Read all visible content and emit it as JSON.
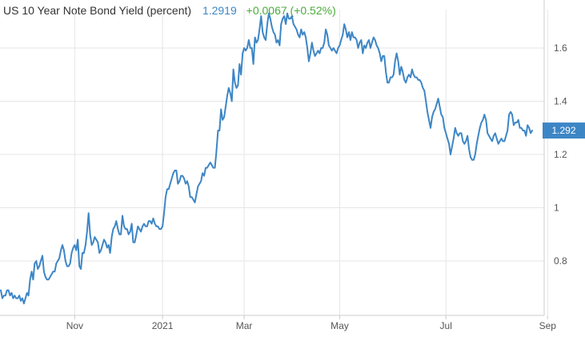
{
  "header": {
    "title": "US 10 Year Note Bond Yield (percent)",
    "price": "1.2919",
    "change": "+0.0067 (+0.52%)"
  },
  "colors": {
    "line": "#3d86c6",
    "grid": "#e6e6e6",
    "axis": "#cccccc",
    "badge": "#3d86c6",
    "positive": "#4aac3a"
  },
  "chart_data": {
    "type": "line",
    "title": "US 10 Year Note Bond Yield (percent)",
    "xlabel": "",
    "ylabel": "",
    "grid": true,
    "ylim": [
      0.6,
      1.76
    ],
    "y_ticks": [
      {
        "value": 0.8,
        "label": "0.8"
      },
      {
        "value": 1.0,
        "label": "1"
      },
      {
        "value": 1.2,
        "label": "1.2"
      },
      {
        "value": 1.4,
        "label": "1.4"
      },
      {
        "value": 1.6,
        "label": "1.6"
      }
    ],
    "x_ticks": [
      {
        "index": 48,
        "label": "Nov"
      },
      {
        "index": 105,
        "label": "2021"
      },
      {
        "index": 158,
        "label": "Mar"
      },
      {
        "index": 220,
        "label": "May"
      },
      {
        "index": 289,
        "label": "Jul"
      },
      {
        "index": 355,
        "label": "Sep"
      }
    ],
    "last_value_label": "1.292",
    "series": [
      {
        "values": [
          0.69,
          0.66,
          0.67,
          0.67,
          0.69,
          0.69,
          0.67,
          0.68,
          0.66,
          0.67,
          0.66,
          0.66,
          0.67,
          0.65,
          0.66,
          0.64,
          0.66,
          0.68,
          0.67,
          0.73,
          0.76,
          0.73,
          0.79,
          0.8,
          0.77,
          0.78,
          0.8,
          0.82,
          0.76,
          0.74,
          0.73,
          0.73,
          0.74,
          0.75,
          0.76,
          0.76,
          0.79,
          0.8,
          0.81,
          0.84,
          0.86,
          0.84,
          0.8,
          0.78,
          0.78,
          0.79,
          0.83,
          0.85,
          0.86,
          0.84,
          0.88,
          0.78,
          0.77,
          0.83,
          0.83,
          0.86,
          0.91,
          0.98,
          0.9,
          0.86,
          0.87,
          0.89,
          0.88,
          0.87,
          0.83,
          0.84,
          0.86,
          0.88,
          0.87,
          0.85,
          0.86,
          0.83,
          0.89,
          0.92,
          0.93,
          0.95,
          0.92,
          0.9,
          0.9,
          0.97,
          0.93,
          0.92,
          0.92,
          0.9,
          0.91,
          0.94,
          0.87,
          0.87,
          0.9,
          0.93,
          0.92,
          0.91,
          0.93,
          0.94,
          0.93,
          0.93,
          0.95,
          0.95,
          0.94,
          0.96,
          0.94,
          0.93,
          0.93,
          0.92,
          0.92,
          0.93,
          0.98,
          1.04,
          1.07,
          1.07,
          1.09,
          1.11,
          1.13,
          1.14,
          1.14,
          1.09,
          1.1,
          1.12,
          1.12,
          1.11,
          1.09,
          1.1,
          1.08,
          1.04,
          1.04,
          1.03,
          1.02,
          1.05,
          1.08,
          1.09,
          1.1,
          1.13,
          1.12,
          1.15,
          1.15,
          1.16,
          1.17,
          1.16,
          1.15,
          1.15,
          1.21,
          1.29,
          1.29,
          1.37,
          1.33,
          1.34,
          1.38,
          1.42,
          1.45,
          1.43,
          1.4,
          1.52,
          1.47,
          1.45,
          1.46,
          1.54,
          1.5,
          1.58,
          1.6,
          1.59,
          1.6,
          1.63,
          1.6,
          1.6,
          1.54,
          1.64,
          1.62,
          1.63,
          1.67,
          1.72,
          1.66,
          1.64,
          1.63,
          1.69,
          1.73,
          1.71,
          1.68,
          1.66,
          1.65,
          1.62,
          1.63,
          1.61,
          1.69,
          1.71,
          1.72,
          1.69,
          1.73,
          1.71,
          1.71,
          1.72,
          1.69,
          1.68,
          1.67,
          1.65,
          1.64,
          1.67,
          1.65,
          1.66,
          1.64,
          1.6,
          1.55,
          1.58,
          1.62,
          1.59,
          1.57,
          1.58,
          1.59,
          1.58,
          1.6,
          1.6,
          1.62,
          1.67,
          1.65,
          1.61,
          1.6,
          1.59,
          1.6,
          1.59,
          1.58,
          1.6,
          1.61,
          1.63,
          1.65,
          1.69,
          1.67,
          1.64,
          1.66,
          1.63,
          1.66,
          1.64,
          1.64,
          1.63,
          1.6,
          1.62,
          1.63,
          1.58,
          1.61,
          1.6,
          1.62,
          1.63,
          1.6,
          1.62,
          1.64,
          1.63,
          1.61,
          1.6,
          1.58,
          1.55,
          1.57,
          1.57,
          1.51,
          1.47,
          1.47,
          1.49,
          1.49,
          1.5,
          1.55,
          1.58,
          1.55,
          1.5,
          1.53,
          1.51,
          1.48,
          1.47,
          1.49,
          1.5,
          1.49,
          1.52,
          1.5,
          1.49,
          1.49,
          1.48,
          1.48,
          1.47,
          1.45,
          1.44,
          1.4,
          1.36,
          1.33,
          1.3,
          1.34,
          1.36,
          1.37,
          1.39,
          1.41,
          1.38,
          1.35,
          1.34,
          1.3,
          1.28,
          1.26,
          1.24,
          1.2,
          1.23,
          1.26,
          1.3,
          1.28,
          1.27,
          1.28,
          1.28,
          1.25,
          1.24,
          1.25,
          1.27,
          1.22,
          1.19,
          1.18,
          1.18,
          1.2,
          1.24,
          1.27,
          1.3,
          1.32,
          1.33,
          1.35,
          1.33,
          1.28,
          1.27,
          1.26,
          1.25,
          1.27,
          1.28,
          1.26,
          1.24,
          1.25,
          1.26,
          1.25,
          1.25,
          1.27,
          1.29,
          1.35,
          1.36,
          1.35,
          1.31,
          1.32,
          1.32,
          1.33,
          1.3,
          1.3,
          1.29,
          1.29,
          1.27,
          1.31,
          1.3,
          1.28,
          1.29
        ]
      }
    ]
  }
}
